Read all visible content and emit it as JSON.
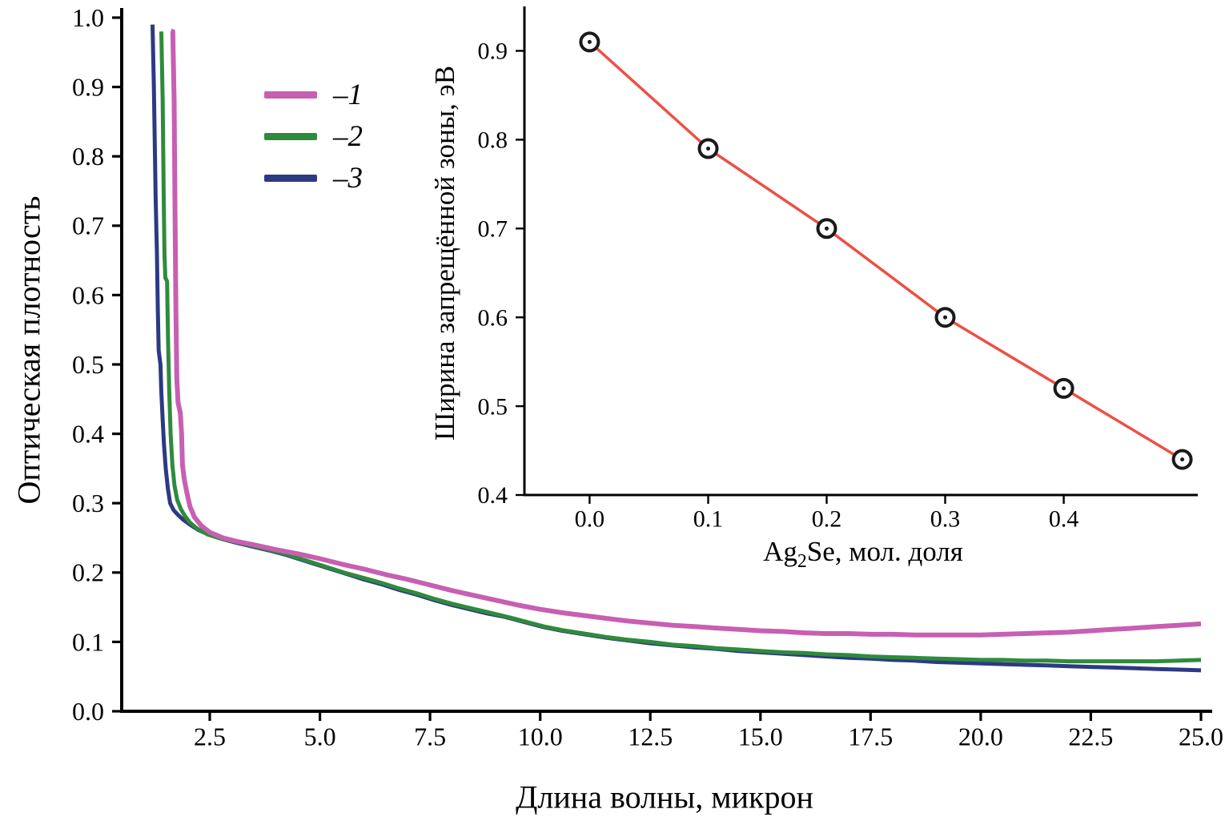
{
  "chart_data": [
    {
      "id": "main",
      "type": "line",
      "title": "",
      "xlabel": "Длина волны, микрон",
      "ylabel": "Оптическая плотность",
      "xlim": [
        0.5,
        25.0
      ],
      "ylim": [
        0.0,
        1.0
      ],
      "grid": false,
      "xticks": [
        2.5,
        5.0,
        7.5,
        10.0,
        12.5,
        15.0,
        17.5,
        20.0,
        22.5,
        25.0
      ],
      "xtick_labels": [
        "2.5",
        "5.0",
        "7.5",
        "10.0",
        "12.5",
        "15.0",
        "17.5",
        "20.0",
        "22.5",
        "25.0"
      ],
      "yticks": [
        0.0,
        0.1,
        0.2,
        0.3,
        0.4,
        0.5,
        0.6,
        0.7,
        0.8,
        0.9,
        1.0
      ],
      "ytick_labels": [
        "0.0",
        "0.1",
        "0.2",
        "0.3",
        "0.4",
        "0.5",
        "0.6",
        "0.7",
        "0.8",
        "0.9",
        "1.0"
      ],
      "legend_position": "top-left",
      "legend": [
        {
          "label": "–1",
          "color": "#c75fb2"
        },
        {
          "label": "–2",
          "color": "#2f8b3c"
        },
        {
          "label": "–3",
          "color": "#2c3a84"
        }
      ],
      "series": [
        {
          "name": "3",
          "color": "#2c3a84",
          "width": 5,
          "points": [
            [
              1.2,
              0.99
            ],
            [
              1.23,
              0.9
            ],
            [
              1.25,
              0.82
            ],
            [
              1.27,
              0.74
            ],
            [
              1.3,
              0.66
            ],
            [
              1.32,
              0.58
            ],
            [
              1.34,
              0.52
            ],
            [
              1.38,
              0.5
            ],
            [
              1.4,
              0.46
            ],
            [
              1.43,
              0.42
            ],
            [
              1.46,
              0.385
            ],
            [
              1.5,
              0.35
            ],
            [
              1.55,
              0.32
            ],
            [
              1.6,
              0.3
            ],
            [
              1.68,
              0.29
            ],
            [
              1.78,
              0.283
            ],
            [
              1.9,
              0.276
            ],
            [
              2.05,
              0.269
            ],
            [
              2.25,
              0.261
            ],
            [
              2.5,
              0.254
            ],
            [
              2.8,
              0.248
            ],
            [
              3.1,
              0.243
            ],
            [
              3.5,
              0.237
            ],
            [
              3.9,
              0.231
            ],
            [
              4.2,
              0.226
            ],
            [
              4.5,
              0.22
            ],
            [
              4.8,
              0.214
            ],
            [
              5.2,
              0.206
            ],
            [
              5.6,
              0.198
            ],
            [
              6.0,
              0.19
            ],
            [
              6.4,
              0.183
            ],
            [
              6.8,
              0.175
            ],
            [
              7.2,
              0.168
            ],
            [
              7.6,
              0.16
            ],
            [
              8.0,
              0.153
            ],
            [
              8.4,
              0.147
            ],
            [
              8.8,
              0.141
            ],
            [
              9.2,
              0.136
            ],
            [
              9.5,
              0.131
            ],
            [
              9.8,
              0.126
            ],
            [
              10.1,
              0.121
            ],
            [
              10.5,
              0.116
            ],
            [
              11.0,
              0.111
            ],
            [
              11.5,
              0.106
            ],
            [
              12.0,
              0.102
            ],
            [
              12.5,
              0.098
            ],
            [
              13.0,
              0.095
            ],
            [
              13.5,
              0.092
            ],
            [
              14.0,
              0.09
            ],
            [
              14.5,
              0.087
            ],
            [
              15.0,
              0.085
            ],
            [
              15.5,
              0.083
            ],
            [
              16.0,
              0.081
            ],
            [
              16.5,
              0.079
            ],
            [
              17.0,
              0.077
            ],
            [
              17.5,
              0.076
            ],
            [
              18.0,
              0.074
            ],
            [
              18.5,
              0.073
            ],
            [
              19.0,
              0.071
            ],
            [
              19.5,
              0.07
            ],
            [
              20.0,
              0.069
            ],
            [
              20.5,
              0.068
            ],
            [
              21.0,
              0.067
            ],
            [
              21.5,
              0.066
            ],
            [
              22.0,
              0.065
            ],
            [
              22.5,
              0.064
            ],
            [
              23.0,
              0.063
            ],
            [
              23.5,
              0.062
            ],
            [
              24.0,
              0.061
            ],
            [
              24.5,
              0.06
            ],
            [
              25.0,
              0.059
            ]
          ]
        },
        {
          "name": "2",
          "color": "#2f8b3c",
          "width": 5,
          "points": [
            [
              1.4,
              0.98
            ],
            [
              1.43,
              0.88
            ],
            [
              1.45,
              0.76
            ],
            [
              1.47,
              0.66
            ],
            [
              1.49,
              0.625
            ],
            [
              1.53,
              0.62
            ],
            [
              1.55,
              0.54
            ],
            [
              1.58,
              0.46
            ],
            [
              1.61,
              0.4
            ],
            [
              1.65,
              0.355
            ],
            [
              1.7,
              0.325
            ],
            [
              1.76,
              0.305
            ],
            [
              1.84,
              0.292
            ],
            [
              1.93,
              0.282
            ],
            [
              2.05,
              0.272
            ],
            [
              2.2,
              0.264
            ],
            [
              2.45,
              0.255
            ],
            [
              2.75,
              0.249
            ],
            [
              3.1,
              0.244
            ],
            [
              3.5,
              0.238
            ],
            [
              3.9,
              0.232
            ],
            [
              4.2,
              0.227
            ],
            [
              4.5,
              0.221
            ],
            [
              4.8,
              0.215
            ],
            [
              5.2,
              0.207
            ],
            [
              5.6,
              0.199
            ],
            [
              6.0,
              0.192
            ],
            [
              6.4,
              0.185
            ],
            [
              6.8,
              0.177
            ],
            [
              7.2,
              0.17
            ],
            [
              7.6,
              0.162
            ],
            [
              8.0,
              0.155
            ],
            [
              8.4,
              0.149
            ],
            [
              8.8,
              0.143
            ],
            [
              9.2,
              0.137
            ],
            [
              9.5,
              0.132
            ],
            [
              9.8,
              0.127
            ],
            [
              10.1,
              0.122
            ],
            [
              10.5,
              0.117
            ],
            [
              11.0,
              0.112
            ],
            [
              11.5,
              0.107
            ],
            [
              12.0,
              0.103
            ],
            [
              12.5,
              0.1
            ],
            [
              13.0,
              0.096
            ],
            [
              13.5,
              0.094
            ],
            [
              14.0,
              0.091
            ],
            [
              14.5,
              0.089
            ],
            [
              15.0,
              0.087
            ],
            [
              15.5,
              0.085
            ],
            [
              16.0,
              0.084
            ],
            [
              16.5,
              0.082
            ],
            [
              17.0,
              0.081
            ],
            [
              17.5,
              0.079
            ],
            [
              18.0,
              0.078
            ],
            [
              18.5,
              0.077
            ],
            [
              19.0,
              0.076
            ],
            [
              19.5,
              0.075
            ],
            [
              20.0,
              0.074
            ],
            [
              20.5,
              0.074
            ],
            [
              21.0,
              0.073
            ],
            [
              21.5,
              0.073
            ],
            [
              22.0,
              0.072
            ],
            [
              22.5,
              0.072
            ],
            [
              23.0,
              0.072
            ],
            [
              23.5,
              0.072
            ],
            [
              24.0,
              0.072
            ],
            [
              24.5,
              0.073
            ],
            [
              25.0,
              0.074
            ]
          ]
        },
        {
          "name": "1",
          "color": "#c75fb2",
          "width": 6,
          "points": [
            [
              1.62,
              0.98
            ],
            [
              1.66,
              0.98
            ],
            [
              1.69,
              0.88
            ],
            [
              1.71,
              0.72
            ],
            [
              1.73,
              0.58
            ],
            [
              1.75,
              0.48
            ],
            [
              1.78,
              0.445
            ],
            [
              1.83,
              0.43
            ],
            [
              1.86,
              0.4
            ],
            [
              1.88,
              0.355
            ],
            [
              1.92,
              0.335
            ],
            [
              1.98,
              0.315
            ],
            [
              2.05,
              0.295
            ],
            [
              2.15,
              0.28
            ],
            [
              2.3,
              0.268
            ],
            [
              2.5,
              0.258
            ],
            [
              2.8,
              0.25
            ],
            [
              3.1,
              0.245
            ],
            [
              3.5,
              0.24
            ],
            [
              4.0,
              0.233
            ],
            [
              4.5,
              0.227
            ],
            [
              5.0,
              0.22
            ],
            [
              5.5,
              0.212
            ],
            [
              6.0,
              0.205
            ],
            [
              6.5,
              0.197
            ],
            [
              7.0,
              0.19
            ],
            [
              7.5,
              0.182
            ],
            [
              8.0,
              0.174
            ],
            [
              8.5,
              0.167
            ],
            [
              9.0,
              0.16
            ],
            [
              9.5,
              0.153
            ],
            [
              10.0,
              0.147
            ],
            [
              10.5,
              0.142
            ],
            [
              11.0,
              0.138
            ],
            [
              11.5,
              0.134
            ],
            [
              12.0,
              0.13
            ],
            [
              12.5,
              0.127
            ],
            [
              13.0,
              0.124
            ],
            [
              13.5,
              0.122
            ],
            [
              14.0,
              0.12
            ],
            [
              14.5,
              0.118
            ],
            [
              15.0,
              0.116
            ],
            [
              15.5,
              0.115
            ],
            [
              16.0,
              0.113
            ],
            [
              16.5,
              0.112
            ],
            [
              17.0,
              0.112
            ],
            [
              17.5,
              0.111
            ],
            [
              18.0,
              0.111
            ],
            [
              18.5,
              0.11
            ],
            [
              19.0,
              0.11
            ],
            [
              19.5,
              0.11
            ],
            [
              20.0,
              0.11
            ],
            [
              20.5,
              0.111
            ],
            [
              21.0,
              0.112
            ],
            [
              21.5,
              0.113
            ],
            [
              22.0,
              0.114
            ],
            [
              22.5,
              0.116
            ],
            [
              23.0,
              0.118
            ],
            [
              23.5,
              0.12
            ],
            [
              24.0,
              0.122
            ],
            [
              24.5,
              0.124
            ],
            [
              25.0,
              0.126
            ]
          ]
        }
      ]
    },
    {
      "id": "inset",
      "type": "scatter",
      "title": "",
      "xlabel": "Ag2Se, мол. доля",
      "xlabel_parts": {
        "pre": "Ag",
        "sub": "2",
        "post": "Se, мол. доля"
      },
      "ylabel": "Ширина запрещённой зоны, эВ",
      "xlim": [
        -0.055,
        0.505
      ],
      "ylim": [
        0.4,
        0.95
      ],
      "grid": false,
      "xticks": [
        0.0,
        0.1,
        0.2,
        0.3,
        0.4
      ],
      "xtick_labels": [
        "0.0",
        "0.1",
        "0.2",
        "0.3",
        "0.4"
      ],
      "yticks": [
        0.4,
        0.5,
        0.6,
        0.7,
        0.8,
        0.9
      ],
      "ytick_labels": [
        "0.4",
        "0.5",
        "0.6",
        "0.7",
        "0.8",
        "0.9"
      ],
      "fit_line_color": "#ee4f45",
      "marker": {
        "shape": "open-circle",
        "color": "#1a1a1a",
        "fill": "#ffffff"
      },
      "x": [
        0.0,
        0.1,
        0.2,
        0.3,
        0.4,
        0.5
      ],
      "y": [
        0.91,
        0.79,
        0.7,
        0.6,
        0.52,
        0.44
      ],
      "points": [
        [
          0.0,
          0.91
        ],
        [
          0.1,
          0.79
        ],
        [
          0.2,
          0.7
        ],
        [
          0.3,
          0.6
        ],
        [
          0.4,
          0.52
        ],
        [
          0.5,
          0.44
        ]
      ]
    }
  ]
}
